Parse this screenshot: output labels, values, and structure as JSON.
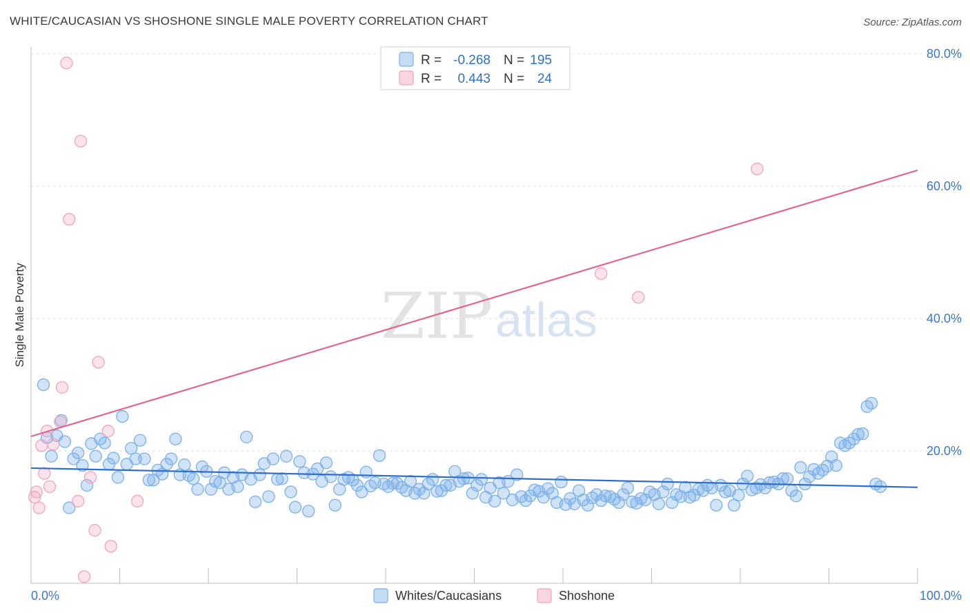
{
  "header": {
    "title": "WHITE/CAUCASIAN VS SHOSHONE SINGLE MALE POVERTY CORRELATION CHART",
    "source": "Source: ZipAtlas.com"
  },
  "watermark": {
    "zip": "ZIP",
    "atlas": "atlas"
  },
  "legend": {
    "rows": [
      {
        "r_label": "R =",
        "r_value": "-0.268",
        "n_label": "N =",
        "n_value": "195",
        "color": "#7ab0e8"
      },
      {
        "r_label": "R =",
        "r_value": "0.443",
        "n_label": "N =",
        "n_value": "24",
        "color": "#f0a3bd"
      }
    ]
  },
  "bottom_legend": [
    {
      "label": "Whites/Caucasians",
      "color": "#7ab0e8"
    },
    {
      "label": "Shoshone",
      "color": "#f0a3bd"
    }
  ],
  "chart_data": {
    "type": "scatter",
    "title": "WHITE/CAUCASIAN VS SHOSHONE SINGLE MALE POVERTY CORRELATION CHART",
    "xlabel": "",
    "ylabel": "Single Male Poverty",
    "xlim": [
      0,
      100
    ],
    "ylim": [
      0,
      80
    ],
    "x_tick_labels": [
      "0.0%",
      "100.0%"
    ],
    "y_ticks": [
      20,
      40,
      60,
      80
    ],
    "y_tick_labels": [
      "20.0%",
      "40.0%",
      "60.0%",
      "80.0%"
    ],
    "colors": {
      "whites": "#7ab0e8",
      "whites_line": "#2f6fcb",
      "shoshone": "#f0a3bd",
      "shoshone_line": "#e0668f"
    },
    "series": [
      {
        "name": "Whites/Caucasians",
        "trend": {
          "x": [
            0,
            100
          ],
          "y": [
            17.4,
            14.5
          ]
        },
        "points": [
          [
            1.4,
            30.0
          ],
          [
            3.4,
            24.6
          ],
          [
            1.8,
            22.0
          ],
          [
            2.3,
            19.2
          ],
          [
            2.9,
            22.3
          ],
          [
            3.8,
            21.4
          ],
          [
            4.3,
            11.4
          ],
          [
            4.8,
            18.8
          ],
          [
            5.3,
            19.7
          ],
          [
            5.8,
            17.8
          ],
          [
            6.3,
            14.8
          ],
          [
            6.8,
            21.1
          ],
          [
            7.3,
            19.2
          ],
          [
            7.8,
            21.8
          ],
          [
            8.3,
            21.2
          ],
          [
            8.8,
            18.0
          ],
          [
            9.3,
            18.9
          ],
          [
            9.8,
            16.0
          ],
          [
            10.3,
            25.2
          ],
          [
            10.8,
            18.0
          ],
          [
            11.3,
            20.4
          ],
          [
            11.8,
            18.8
          ],
          [
            12.3,
            21.6
          ],
          [
            12.8,
            18.8
          ],
          [
            13.3,
            15.6
          ],
          [
            13.8,
            15.6
          ],
          [
            14.3,
            17.1
          ],
          [
            14.8,
            16.5
          ],
          [
            15.3,
            18.0
          ],
          [
            15.8,
            18.8
          ],
          [
            16.3,
            21.8
          ],
          [
            16.8,
            16.4
          ],
          [
            17.3,
            17.9
          ],
          [
            17.8,
            16.3
          ],
          [
            18.3,
            15.8
          ],
          [
            18.8,
            14.2
          ],
          [
            19.3,
            17.6
          ],
          [
            19.8,
            16.9
          ],
          [
            20.3,
            14.2
          ],
          [
            20.8,
            15.4
          ],
          [
            21.3,
            15.2
          ],
          [
            21.8,
            16.7
          ],
          [
            22.3,
            14.2
          ],
          [
            22.8,
            16.0
          ],
          [
            23.3,
            14.6
          ],
          [
            23.8,
            16.4
          ],
          [
            24.3,
            22.1
          ],
          [
            24.8,
            15.7
          ],
          [
            25.3,
            12.3
          ],
          [
            25.8,
            16.4
          ],
          [
            26.3,
            18.1
          ],
          [
            26.8,
            13.1
          ],
          [
            27.3,
            18.8
          ],
          [
            27.8,
            15.7
          ],
          [
            28.3,
            15.8
          ],
          [
            28.8,
            19.2
          ],
          [
            29.3,
            13.8
          ],
          [
            29.8,
            11.5
          ],
          [
            30.3,
            18.4
          ],
          [
            30.8,
            16.7
          ],
          [
            31.3,
            10.9
          ],
          [
            31.8,
            16.5
          ],
          [
            32.3,
            17.3
          ],
          [
            32.8,
            15.4
          ],
          [
            33.3,
            18.2
          ],
          [
            33.8,
            16.1
          ],
          [
            34.3,
            11.8
          ],
          [
            34.8,
            14.2
          ],
          [
            35.3,
            15.7
          ],
          [
            35.8,
            16.0
          ],
          [
            36.3,
            15.6
          ],
          [
            36.8,
            14.8
          ],
          [
            37.3,
            13.8
          ],
          [
            37.8,
            16.8
          ],
          [
            38.3,
            14.7
          ],
          [
            38.8,
            15.2
          ],
          [
            39.3,
            19.3
          ],
          [
            39.8,
            15.0
          ],
          [
            40.3,
            14.6
          ],
          [
            40.8,
            15.1
          ],
          [
            41.3,
            15.1
          ],
          [
            41.8,
            14.5
          ],
          [
            42.3,
            14.0
          ],
          [
            42.8,
            15.4
          ],
          [
            43.3,
            13.6
          ],
          [
            43.8,
            14.2
          ],
          [
            44.3,
            13.6
          ],
          [
            44.8,
            15.0
          ],
          [
            45.3,
            15.7
          ],
          [
            45.8,
            13.9
          ],
          [
            46.3,
            14.0
          ],
          [
            46.8,
            14.8
          ],
          [
            47.3,
            14.8
          ],
          [
            47.8,
            16.9
          ],
          [
            48.3,
            15.4
          ],
          [
            48.8,
            15.8
          ],
          [
            49.3,
            15.9
          ],
          [
            49.8,
            13.6
          ],
          [
            50.3,
            14.8
          ],
          [
            50.8,
            15.7
          ],
          [
            51.3,
            13.0
          ],
          [
            51.8,
            14.4
          ],
          [
            52.3,
            12.4
          ],
          [
            52.8,
            15.2
          ],
          [
            53.3,
            13.6
          ],
          [
            53.8,
            15.4
          ],
          [
            54.3,
            12.6
          ],
          [
            54.8,
            16.4
          ],
          [
            55.3,
            13.1
          ],
          [
            55.8,
            12.5
          ],
          [
            56.3,
            13.2
          ],
          [
            56.8,
            14.1
          ],
          [
            57.3,
            13.9
          ],
          [
            57.8,
            13.0
          ],
          [
            58.3,
            14.3
          ],
          [
            58.8,
            13.6
          ],
          [
            59.3,
            12.2
          ],
          [
            59.8,
            15.3
          ],
          [
            60.3,
            11.9
          ],
          [
            60.8,
            12.8
          ],
          [
            61.3,
            12.0
          ],
          [
            61.8,
            14.0
          ],
          [
            62.3,
            12.6
          ],
          [
            62.8,
            11.8
          ],
          [
            63.3,
            12.9
          ],
          [
            63.8,
            13.4
          ],
          [
            64.3,
            12.5
          ],
          [
            64.8,
            13.2
          ],
          [
            65.3,
            13.1
          ],
          [
            65.8,
            12.7
          ],
          [
            66.3,
            12.2
          ],
          [
            66.8,
            13.4
          ],
          [
            67.3,
            14.4
          ],
          [
            67.8,
            12.3
          ],
          [
            68.3,
            12.1
          ],
          [
            68.8,
            12.8
          ],
          [
            69.3,
            12.6
          ],
          [
            69.8,
            13.8
          ],
          [
            70.3,
            13.4
          ],
          [
            70.8,
            12.0
          ],
          [
            71.3,
            13.8
          ],
          [
            71.8,
            15.0
          ],
          [
            72.3,
            12.2
          ],
          [
            72.8,
            13.4
          ],
          [
            73.3,
            13.1
          ],
          [
            73.8,
            14.5
          ],
          [
            74.3,
            13.0
          ],
          [
            74.8,
            13.3
          ],
          [
            75.3,
            14.2
          ],
          [
            75.8,
            14.0
          ],
          [
            76.3,
            14.8
          ],
          [
            76.8,
            14.4
          ],
          [
            77.3,
            11.8
          ],
          [
            77.8,
            14.8
          ],
          [
            78.3,
            13.8
          ],
          [
            78.8,
            14.0
          ],
          [
            79.3,
            11.8
          ],
          [
            79.8,
            13.3
          ],
          [
            80.3,
            15.0
          ],
          [
            80.8,
            16.2
          ],
          [
            81.3,
            14.1
          ],
          [
            81.8,
            14.4
          ],
          [
            82.3,
            14.9
          ],
          [
            82.8,
            14.4
          ],
          [
            83.3,
            15.2
          ],
          [
            83.8,
            15.3
          ],
          [
            84.3,
            15.0
          ],
          [
            84.8,
            15.8
          ],
          [
            85.3,
            15.8
          ],
          [
            85.8,
            14.0
          ],
          [
            86.3,
            13.2
          ],
          [
            86.8,
            17.5
          ],
          [
            87.3,
            15.0
          ],
          [
            87.8,
            16.1
          ],
          [
            88.3,
            17.2
          ],
          [
            88.8,
            16.6
          ],
          [
            89.3,
            17.1
          ],
          [
            89.8,
            17.7
          ],
          [
            90.3,
            19.1
          ],
          [
            90.8,
            17.8
          ],
          [
            91.3,
            21.2
          ],
          [
            91.8,
            20.8
          ],
          [
            92.3,
            21.2
          ],
          [
            92.8,
            21.8
          ],
          [
            93.3,
            22.5
          ],
          [
            93.8,
            22.6
          ],
          [
            94.3,
            26.7
          ],
          [
            94.8,
            27.2
          ],
          [
            95.3,
            15.0
          ],
          [
            95.8,
            14.6
          ]
        ]
      },
      {
        "name": "Shoshone",
        "trend": {
          "x": [
            0,
            100
          ],
          "y": [
            22.2,
            62.4
          ]
        },
        "points": [
          [
            0.4,
            13.0
          ],
          [
            0.6,
            13.8
          ],
          [
            0.9,
            11.4
          ],
          [
            1.2,
            20.8
          ],
          [
            1.5,
            16.6
          ],
          [
            1.8,
            23.0
          ],
          [
            2.1,
            14.6
          ],
          [
            2.5,
            21.0
          ],
          [
            3.3,
            24.4
          ],
          [
            3.5,
            29.6
          ],
          [
            4.0,
            78.6
          ],
          [
            4.3,
            55.0
          ],
          [
            5.3,
            12.4
          ],
          [
            5.6,
            66.8
          ],
          [
            6.0,
            1.0
          ],
          [
            6.7,
            16.0
          ],
          [
            7.2,
            8.0
          ],
          [
            7.6,
            33.4
          ],
          [
            8.7,
            23.0
          ],
          [
            9.0,
            5.6
          ],
          [
            12.0,
            12.4
          ],
          [
            64.3,
            46.8
          ],
          [
            68.5,
            43.2
          ],
          [
            81.9,
            62.6
          ]
        ]
      }
    ]
  }
}
